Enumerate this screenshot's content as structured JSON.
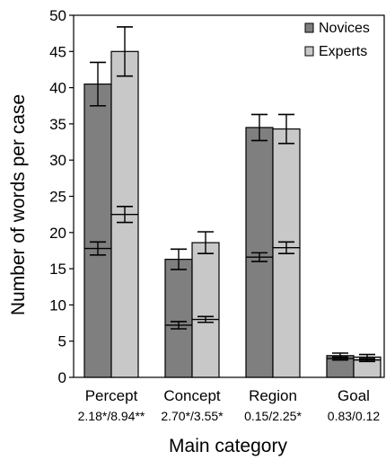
{
  "chart_data": {
    "type": "bar",
    "xlabel": "Main category",
    "ylabel": "Number of words per case",
    "ylim": [
      0,
      50
    ],
    "yticks": [
      0,
      5,
      10,
      15,
      20,
      25,
      30,
      35,
      40,
      45,
      50
    ],
    "grid": false,
    "legend_position": "top-right",
    "categories": [
      "Percept",
      "Concept",
      "Region",
      "Goal"
    ],
    "stats": [
      "2.18*/8.94**",
      "2.70*/3.55*",
      "0.15/2.25*",
      "0.83/0.12"
    ],
    "series": [
      {
        "name": "Novices",
        "color": "#7f7f7f",
        "values": [
          40.5,
          16.3,
          34.5,
          3.0
        ],
        "errors": [
          3.0,
          1.4,
          1.8,
          0.35
        ],
        "inner_values": [
          17.8,
          7.2,
          16.6,
          2.6
        ],
        "inner_errors": [
          0.9,
          0.5,
          0.6,
          0.2
        ]
      },
      {
        "name": "Experts",
        "color": "#c8c8c8",
        "values": [
          45.0,
          18.6,
          34.3,
          2.8
        ],
        "errors": [
          3.4,
          1.5,
          2.0,
          0.35
        ],
        "inner_values": [
          22.5,
          8.0,
          17.9,
          2.4
        ],
        "inner_errors": [
          1.1,
          0.4,
          0.8,
          0.2
        ]
      }
    ]
  }
}
